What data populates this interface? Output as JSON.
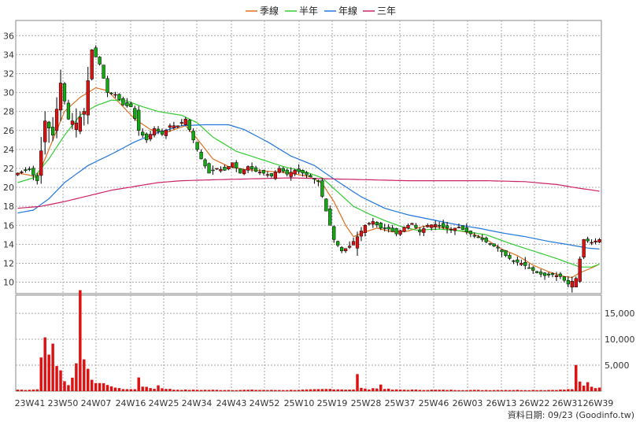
{
  "chart_data": {
    "type": "candlestick-volume",
    "legend": [
      {
        "name": "季線",
        "color": "#e07020"
      },
      {
        "name": "半年",
        "color": "#33cc33"
      },
      {
        "name": "年線",
        "color": "#2277dd"
      },
      {
        "name": "三年",
        "color": "#cc2266"
      }
    ],
    "price_axis": {
      "ticks": [
        10,
        12,
        14,
        16,
        18,
        20,
        22,
        24,
        26,
        28,
        30,
        32,
        34,
        36
      ],
      "range": [
        8.8,
        37.6
      ],
      "side": "left"
    },
    "volume_axis": {
      "ticks": [
        "5,000",
        "10,000",
        "15,000"
      ],
      "tick_values": [
        5000,
        10000,
        15000
      ],
      "max": 18500,
      "side": "right"
    },
    "x_labels": [
      "23W41",
      "23W50",
      "24W07",
      "24W16",
      "24W25",
      "24W34",
      "24W43",
      "24W52",
      "25W10",
      "25W19",
      "25W28",
      "25W37",
      "25W46",
      "26W03",
      "26W13",
      "26W22",
      "26W31",
      "26W39"
    ],
    "grid": true,
    "close_anchors": [
      [
        0,
        21.5
      ],
      [
        3,
        21.9
      ],
      [
        5,
        20.7
      ],
      [
        7,
        27
      ],
      [
        9,
        25.5
      ],
      [
        11,
        31
      ],
      [
        13,
        27.2
      ],
      [
        15,
        26.8
      ],
      [
        17,
        28
      ],
      [
        19,
        34.5
      ],
      [
        21,
        33
      ],
      [
        23,
        30
      ],
      [
        25,
        29.8
      ],
      [
        27,
        28.7
      ],
      [
        29,
        28.5
      ],
      [
        31,
        26
      ],
      [
        33,
        25
      ],
      [
        35,
        26.2
      ],
      [
        37,
        25.6
      ],
      [
        39,
        26.5
      ],
      [
        41,
        26.5
      ],
      [
        43,
        27.2
      ],
      [
        45,
        25
      ],
      [
        47,
        23
      ],
      [
        49,
        21.5
      ],
      [
        51,
        22
      ],
      [
        53,
        21.8
      ],
      [
        55,
        22.6
      ],
      [
        57,
        21.5
      ],
      [
        59,
        22.2
      ],
      [
        61,
        21.7
      ],
      [
        63,
        21.5
      ],
      [
        65,
        21.2
      ],
      [
        67,
        22
      ],
      [
        69,
        21.4
      ],
      [
        71,
        21.8
      ],
      [
        73,
        21.5
      ],
      [
        75,
        21.1
      ],
      [
        77,
        20.6
      ],
      [
        79,
        17.5
      ],
      [
        81,
        14.5
      ],
      [
        83,
        13.3
      ],
      [
        85,
        13.8
      ],
      [
        87,
        14.8
      ],
      [
        89,
        16
      ],
      [
        91,
        16.4
      ],
      [
        93,
        15.7
      ],
      [
        95,
        15.6
      ],
      [
        97,
        15.1
      ],
      [
        99,
        15.8
      ],
      [
        101,
        16.2
      ],
      [
        103,
        15.3
      ],
      [
        105,
        16
      ],
      [
        107,
        16.1
      ],
      [
        109,
        15.8
      ],
      [
        111,
        15.6
      ],
      [
        113,
        15.8
      ],
      [
        115,
        15.3
      ],
      [
        117,
        14.9
      ],
      [
        119,
        14.5
      ],
      [
        121,
        14
      ],
      [
        123,
        13.6
      ],
      [
        125,
        12.8
      ],
      [
        127,
        12.2
      ],
      [
        129,
        12
      ],
      [
        131,
        11.5
      ],
      [
        133,
        11
      ],
      [
        135,
        10.7
      ],
      [
        137,
        10.8
      ],
      [
        139,
        10.6
      ],
      [
        141,
        9.8
      ],
      [
        143,
        10.4
      ],
      [
        145,
        14.5
      ],
      [
        147,
        14.2
      ],
      [
        149,
        14.5
      ]
    ],
    "volume_anchors": [
      [
        0,
        300
      ],
      [
        2,
        260
      ],
      [
        5,
        350
      ],
      [
        6,
        7800
      ],
      [
        7,
        9000
      ],
      [
        8,
        6800
      ],
      [
        9,
        9500
      ],
      [
        10,
        5300
      ],
      [
        11,
        3600
      ],
      [
        12,
        1800
      ],
      [
        13,
        1400
      ],
      [
        14,
        2600
      ],
      [
        15,
        6000
      ],
      [
        16,
        18200
      ],
      [
        17,
        7100
      ],
      [
        18,
        4200
      ],
      [
        19,
        2200
      ],
      [
        20,
        1800
      ],
      [
        21,
        1900
      ],
      [
        22,
        1300
      ],
      [
        23,
        1000
      ],
      [
        24,
        1100
      ],
      [
        25,
        700
      ],
      [
        26,
        500
      ],
      [
        28,
        400
      ],
      [
        30,
        350
      ],
      [
        31,
        2900
      ],
      [
        32,
        1000
      ],
      [
        33,
        700
      ],
      [
        34,
        600
      ],
      [
        35,
        500
      ],
      [
        36,
        1100
      ],
      [
        37,
        600
      ],
      [
        38,
        500
      ],
      [
        40,
        300
      ],
      [
        45,
        260
      ],
      [
        50,
        250
      ],
      [
        55,
        230
      ],
      [
        60,
        260
      ],
      [
        65,
        220
      ],
      [
        70,
        230
      ],
      [
        75,
        300
      ],
      [
        80,
        420
      ],
      [
        83,
        350
      ],
      [
        86,
        300
      ],
      [
        87,
        3000
      ],
      [
        88,
        700
      ],
      [
        89,
        420
      ],
      [
        90,
        400
      ],
      [
        91,
        600
      ],
      [
        92,
        500
      ],
      [
        93,
        1300
      ],
      [
        94,
        500
      ],
      [
        95,
        400
      ],
      [
        96,
        300
      ],
      [
        100,
        280
      ],
      [
        105,
        260
      ],
      [
        110,
        250
      ],
      [
        115,
        230
      ],
      [
        120,
        220
      ],
      [
        125,
        240
      ],
      [
        130,
        230
      ],
      [
        135,
        220
      ],
      [
        140,
        300
      ],
      [
        142,
        400
      ],
      [
        143,
        4300
      ],
      [
        144,
        1700
      ],
      [
        145,
        1000
      ],
      [
        146,
        1900
      ],
      [
        147,
        900
      ],
      [
        148,
        700
      ],
      [
        149,
        600
      ]
    ],
    "ma_quarter": [
      [
        0,
        21.5
      ],
      [
        3,
        21.3
      ],
      [
        5,
        21
      ],
      [
        8,
        24
      ],
      [
        12,
        28
      ],
      [
        16,
        29.5
      ],
      [
        20,
        30.5
      ],
      [
        23,
        30.2
      ],
      [
        27,
        28.5
      ],
      [
        30,
        27.2
      ],
      [
        34,
        26.1
      ],
      [
        38,
        25.8
      ],
      [
        43,
        26.5
      ],
      [
        46,
        25.1
      ],
      [
        50,
        23
      ],
      [
        54,
        22.2
      ],
      [
        58,
        21.9
      ],
      [
        64,
        21.7
      ],
      [
        70,
        21.5
      ],
      [
        75,
        21.1
      ],
      [
        78,
        20.4
      ],
      [
        81,
        18.5
      ],
      [
        84,
        16
      ],
      [
        86,
        14.8
      ],
      [
        89,
        15.3
      ],
      [
        92,
        15.7
      ],
      [
        96,
        15.3
      ],
      [
        100,
        15.4
      ],
      [
        104,
        15.9
      ],
      [
        108,
        15.8
      ],
      [
        112,
        15.5
      ],
      [
        116,
        15.2
      ],
      [
        120,
        14.5
      ],
      [
        124,
        13.5
      ],
      [
        128,
        12.8
      ],
      [
        132,
        11.8
      ],
      [
        136,
        11.1
      ],
      [
        140,
        10.6
      ],
      [
        142,
        10.5
      ],
      [
        144,
        11
      ],
      [
        147,
        11.5
      ],
      [
        149,
        11.9
      ]
    ],
    "ma_half": [
      [
        0,
        20.5
      ],
      [
        4,
        21
      ],
      [
        8,
        23
      ],
      [
        12,
        25.5
      ],
      [
        16,
        27.6
      ],
      [
        20,
        28.6
      ],
      [
        24,
        29.2
      ],
      [
        28,
        29.1
      ],
      [
        32,
        28.5
      ],
      [
        36,
        28
      ],
      [
        42,
        27.6
      ],
      [
        46,
        26.8
      ],
      [
        50,
        25.3
      ],
      [
        56,
        23.8
      ],
      [
        62,
        23
      ],
      [
        68,
        22.2
      ],
      [
        74,
        21.6
      ],
      [
        78,
        21
      ],
      [
        82,
        19.5
      ],
      [
        86,
        18
      ],
      [
        90,
        17.2
      ],
      [
        94,
        16.5
      ],
      [
        98,
        15.9
      ],
      [
        102,
        15.5
      ],
      [
        108,
        15.6
      ],
      [
        114,
        15.4
      ],
      [
        120,
        15
      ],
      [
        126,
        14.1
      ],
      [
        132,
        13.3
      ],
      [
        138,
        12.5
      ],
      [
        142,
        11.9
      ],
      [
        144,
        11.6
      ],
      [
        147,
        11.6
      ],
      [
        149,
        11.9
      ]
    ],
    "ma_year": [
      [
        0,
        17.3
      ],
      [
        4,
        17.6
      ],
      [
        8,
        18.8
      ],
      [
        12,
        20.5
      ],
      [
        18,
        22.3
      ],
      [
        24,
        23.5
      ],
      [
        30,
        24.8
      ],
      [
        36,
        25.8
      ],
      [
        42,
        26.5
      ],
      [
        48,
        26.6
      ],
      [
        54,
        26.6
      ],
      [
        58,
        26.1
      ],
      [
        64,
        24.8
      ],
      [
        70,
        23.3
      ],
      [
        76,
        22.3
      ],
      [
        82,
        20.6
      ],
      [
        88,
        19
      ],
      [
        94,
        17.8
      ],
      [
        100,
        17.1
      ],
      [
        106,
        16.6
      ],
      [
        112,
        16.1
      ],
      [
        118,
        15.7
      ],
      [
        124,
        15.2
      ],
      [
        130,
        14.8
      ],
      [
        136,
        14.3
      ],
      [
        142,
        13.9
      ],
      [
        146,
        13.6
      ],
      [
        149,
        13.5
      ]
    ],
    "ma_three_year": [
      [
        0,
        17.8
      ],
      [
        6,
        18
      ],
      [
        12,
        18.5
      ],
      [
        18,
        19.1
      ],
      [
        24,
        19.7
      ],
      [
        30,
        20.1
      ],
      [
        36,
        20.5
      ],
      [
        42,
        20.7
      ],
      [
        50,
        20.8
      ],
      [
        60,
        20.9
      ],
      [
        70,
        21
      ],
      [
        80,
        20.9
      ],
      [
        90,
        20.8
      ],
      [
        100,
        20.7
      ],
      [
        110,
        20.7
      ],
      [
        120,
        20.7
      ],
      [
        130,
        20.6
      ],
      [
        138,
        20.3
      ],
      [
        144,
        19.9
      ],
      [
        149,
        19.6
      ]
    ]
  },
  "footer": {
    "credit": "資料日期: 09/23  (Goodinfo.tw)"
  }
}
